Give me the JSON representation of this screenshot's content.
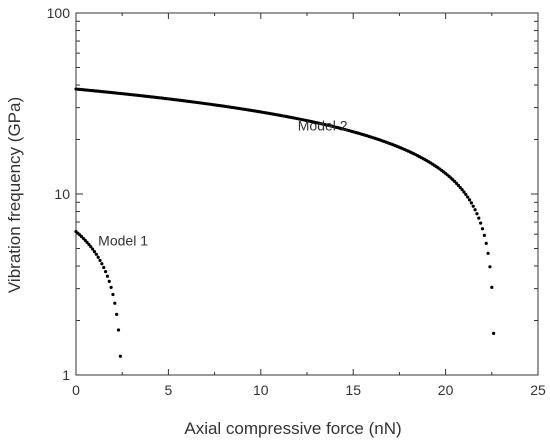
{
  "chart_data": {
    "type": "scatter",
    "title": "",
    "xlabel": "Axial compressive force (nN)",
    "ylabel": "Vibration frequency (GPa)",
    "xlim": [
      0,
      25
    ],
    "ylim": [
      1,
      100
    ],
    "yscale": "log",
    "grid": false,
    "legend": "none",
    "x_ticks": [
      0,
      5,
      10,
      15,
      20,
      25
    ],
    "x_tick_labels": [
      "0",
      "5",
      "10",
      "15",
      "20",
      "25"
    ],
    "y_ticks": [
      1,
      10,
      100
    ],
    "y_tick_labels": [
      "1",
      "10",
      "100"
    ],
    "annotations": [
      {
        "text": "Model 2",
        "x": 12.0,
        "y": 22.5
      },
      {
        "text": "Model 1",
        "x": 1.2,
        "y": 5.2
      }
    ],
    "series": [
      {
        "color": "#000000",
        "x0": 0,
        "x1": 22.6,
        "f0": 38.0,
        "n": 226
      },
      {
        "color": "#000000",
        "x0": 0,
        "x1": 2.5,
        "f0": 6.2,
        "n": 26
      }
    ]
  }
}
